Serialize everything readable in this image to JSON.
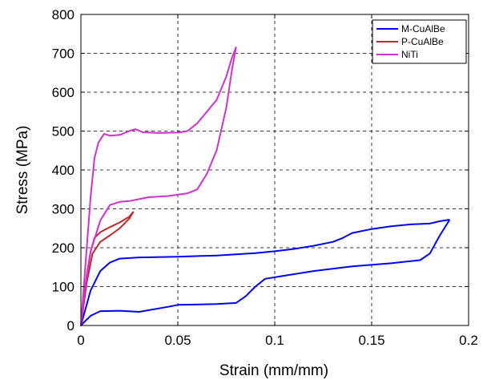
{
  "chart_data": {
    "type": "line",
    "title": "",
    "xlabel": "Strain (mm/mm)",
    "ylabel": "Stress (MPa)",
    "xlim": [
      0,
      0.2
    ],
    "ylim": [
      0,
      800
    ],
    "xticks": [
      0,
      0.05,
      0.1,
      0.15,
      0.2
    ],
    "xtick_labels": [
      "0",
      "0.05",
      "0.1",
      "0.15",
      "0.2"
    ],
    "yticks": [
      0,
      100,
      200,
      300,
      400,
      500,
      600,
      700,
      800
    ],
    "ytick_labels": [
      "0",
      "100",
      "200",
      "300",
      "400",
      "500",
      "600",
      "700",
      "800"
    ],
    "grid": true,
    "legend_position": "top-right",
    "series": [
      {
        "name": "M-CuAlBe",
        "color": "#0000ff",
        "points": [
          [
            0,
            0
          ],
          [
            0.005,
            90
          ],
          [
            0.01,
            140
          ],
          [
            0.015,
            162
          ],
          [
            0.02,
            172
          ],
          [
            0.03,
            175
          ],
          [
            0.05,
            177
          ],
          [
            0.07,
            180
          ],
          [
            0.09,
            186
          ],
          [
            0.1,
            191
          ],
          [
            0.11,
            197
          ],
          [
            0.12,
            205
          ],
          [
            0.13,
            215
          ],
          [
            0.135,
            225
          ],
          [
            0.14,
            238
          ],
          [
            0.15,
            248
          ],
          [
            0.16,
            255
          ],
          [
            0.17,
            260
          ],
          [
            0.18,
            262
          ],
          [
            0.185,
            268
          ],
          [
            0.19,
            272
          ],
          [
            0.19,
            270
          ],
          [
            0.185,
            230
          ],
          [
            0.18,
            185
          ],
          [
            0.175,
            168
          ],
          [
            0.16,
            160
          ],
          [
            0.14,
            152
          ],
          [
            0.12,
            140
          ],
          [
            0.105,
            128
          ],
          [
            0.095,
            120
          ],
          [
            0.09,
            100
          ],
          [
            0.085,
            75
          ],
          [
            0.08,
            58
          ],
          [
            0.07,
            55
          ],
          [
            0.05,
            53
          ],
          [
            0.045,
            48
          ],
          [
            0.03,
            35
          ],
          [
            0.02,
            38
          ],
          [
            0.01,
            37
          ],
          [
            0.005,
            25
          ],
          [
            0.002,
            10
          ],
          [
            0,
            0
          ]
        ]
      },
      {
        "name": "P-CuAlBe",
        "color": "#c0282a",
        "points": [
          [
            0,
            0
          ],
          [
            0.003,
            130
          ],
          [
            0.005,
            190
          ],
          [
            0.007,
            225
          ],
          [
            0.01,
            240
          ],
          [
            0.015,
            253
          ],
          [
            0.02,
            265
          ],
          [
            0.025,
            280
          ],
          [
            0.027,
            292
          ],
          [
            0.025,
            275
          ],
          [
            0.02,
            250
          ],
          [
            0.015,
            232
          ],
          [
            0.01,
            215
          ],
          [
            0.006,
            185
          ],
          [
            0.003,
            110
          ],
          [
            0,
            0
          ]
        ]
      },
      {
        "name": "NiTi",
        "color": "#cc33cc",
        "points": [
          [
            0,
            0
          ],
          [
            0.003,
            200
          ],
          [
            0.005,
            330
          ],
          [
            0.007,
            430
          ],
          [
            0.009,
            470
          ],
          [
            0.012,
            493
          ],
          [
            0.015,
            488
          ],
          [
            0.02,
            490
          ],
          [
            0.025,
            500
          ],
          [
            0.028,
            505
          ],
          [
            0.032,
            497
          ],
          [
            0.04,
            495
          ],
          [
            0.05,
            496
          ],
          [
            0.055,
            500
          ],
          [
            0.06,
            520
          ],
          [
            0.065,
            550
          ],
          [
            0.07,
            580
          ],
          [
            0.075,
            640
          ],
          [
            0.078,
            690
          ],
          [
            0.08,
            715
          ],
          [
            0.078,
            660
          ],
          [
            0.075,
            560
          ],
          [
            0.07,
            450
          ],
          [
            0.065,
            390
          ],
          [
            0.06,
            350
          ],
          [
            0.055,
            340
          ],
          [
            0.045,
            333
          ],
          [
            0.035,
            330
          ],
          [
            0.03,
            325
          ],
          [
            0.025,
            320
          ],
          [
            0.02,
            318
          ],
          [
            0.015,
            310
          ],
          [
            0.01,
            270
          ],
          [
            0.005,
            190
          ],
          [
            0.002,
            90
          ],
          [
            0,
            0
          ]
        ]
      }
    ]
  }
}
